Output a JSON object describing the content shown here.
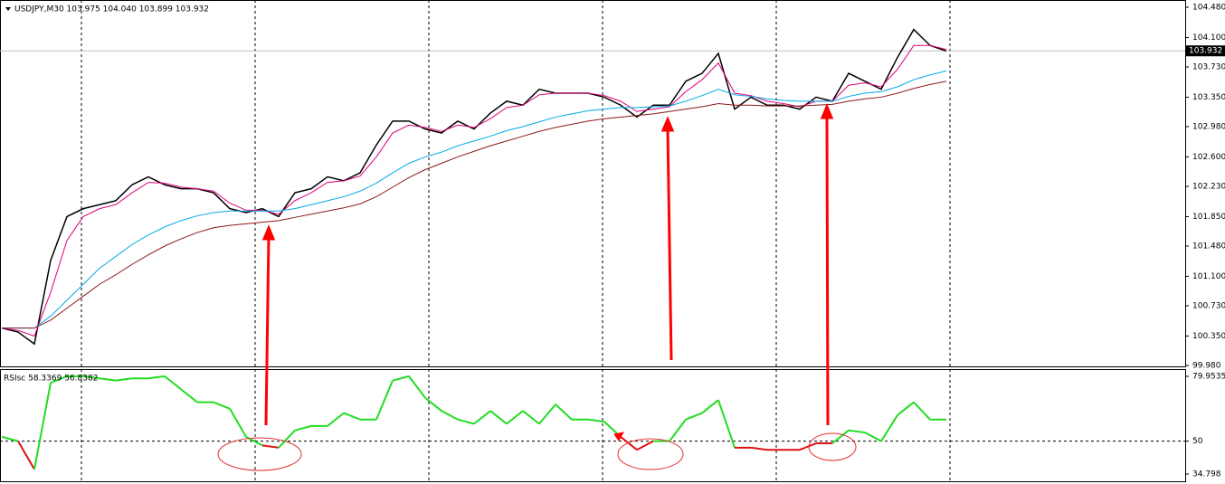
{
  "chart_data": [
    {
      "type": "line",
      "title": "USDJPY,M30 103.975 104.040 103.899 103.932",
      "ylim": [
        99.98,
        104.48
      ],
      "yticks": [
        {
          "value": 104.48,
          "label": "104.480"
        },
        {
          "value": 104.1,
          "label": "104.100"
        },
        {
          "value": 103.73,
          "label": "103.730"
        },
        {
          "value": 103.35,
          "label": "103.350"
        },
        {
          "value": 102.98,
          "label": "102.980"
        },
        {
          "value": 102.6,
          "label": "102.600"
        },
        {
          "value": 102.23,
          "label": "102.230"
        },
        {
          "value": 101.85,
          "label": "101.850"
        },
        {
          "value": 101.48,
          "label": "101.480"
        },
        {
          "value": 101.1,
          "label": "101.100"
        },
        {
          "value": 100.73,
          "label": "100.730"
        },
        {
          "value": 100.35,
          "label": "100.350"
        },
        {
          "value": 99.98,
          "label": "99.980"
        }
      ],
      "current_price": {
        "value": 103.932,
        "label": "103.932"
      },
      "series": [
        {
          "color": "#000000",
          "values": [
            100.45,
            100.4,
            100.25,
            101.3,
            101.85,
            101.95,
            102.0,
            102.05,
            102.25,
            102.35,
            102.25,
            102.2,
            102.2,
            102.15,
            101.95,
            101.9,
            101.95,
            101.85,
            102.15,
            102.2,
            102.35,
            102.3,
            102.4,
            102.75,
            103.05,
            103.05,
            102.95,
            102.9,
            103.05,
            102.95,
            103.15,
            103.3,
            103.25,
            103.45,
            103.4,
            103.4,
            103.4,
            103.35,
            103.25,
            103.1,
            103.25,
            103.25,
            103.55,
            103.65,
            103.9,
            103.2,
            103.35,
            103.25,
            103.25,
            103.2,
            103.35,
            103.3,
            103.65,
            103.55,
            103.45,
            103.85,
            104.2,
            104.0,
            103.93
          ]
        },
        {
          "color": "#e0007a",
          "values": [
            100.45,
            100.42,
            100.35,
            100.9,
            101.55,
            101.85,
            101.95,
            102.0,
            102.15,
            102.28,
            102.27,
            102.22,
            102.2,
            102.17,
            102.02,
            101.93,
            101.93,
            101.88,
            102.05,
            102.15,
            102.28,
            102.3,
            102.36,
            102.6,
            102.9,
            103.0,
            102.97,
            102.92,
            103.0,
            102.97,
            103.08,
            103.22,
            103.25,
            103.38,
            103.4,
            103.4,
            103.4,
            103.37,
            103.3,
            103.17,
            103.2,
            103.23,
            103.42,
            103.57,
            103.78,
            103.4,
            103.37,
            103.3,
            103.27,
            103.23,
            103.3,
            103.3,
            103.5,
            103.53,
            103.48,
            103.7,
            104.0,
            104.0,
            103.95
          ]
        },
        {
          "color": "#00a8e8",
          "values": [
            100.45,
            100.45,
            100.45,
            100.6,
            100.8,
            101.0,
            101.2,
            101.35,
            101.5,
            101.62,
            101.72,
            101.8,
            101.86,
            101.9,
            101.92,
            101.92,
            101.92,
            101.92,
            101.95,
            102.0,
            102.05,
            102.1,
            102.17,
            102.27,
            102.4,
            102.52,
            102.6,
            102.66,
            102.74,
            102.8,
            102.86,
            102.93,
            102.98,
            103.04,
            103.1,
            103.14,
            103.18,
            103.2,
            103.22,
            103.22,
            103.23,
            103.24,
            103.3,
            103.37,
            103.45,
            103.38,
            103.36,
            103.33,
            103.31,
            103.3,
            103.3,
            103.3,
            103.36,
            103.4,
            103.42,
            103.48,
            103.57,
            103.63,
            103.68
          ]
        },
        {
          "color": "#8b1a1a",
          "values": [
            100.45,
            100.45,
            100.45,
            100.55,
            100.7,
            100.85,
            101.0,
            101.12,
            101.25,
            101.37,
            101.48,
            101.57,
            101.65,
            101.71,
            101.74,
            101.76,
            101.78,
            101.8,
            101.84,
            101.88,
            101.92,
            101.96,
            102.01,
            102.1,
            102.22,
            102.34,
            102.44,
            102.52,
            102.6,
            102.67,
            102.74,
            102.8,
            102.86,
            102.92,
            102.97,
            103.01,
            103.05,
            103.08,
            103.1,
            103.12,
            103.14,
            103.17,
            103.2,
            103.23,
            103.27,
            103.25,
            103.25,
            103.24,
            103.24,
            103.24,
            103.25,
            103.26,
            103.3,
            103.33,
            103.35,
            103.4,
            103.46,
            103.51,
            103.55
          ]
        }
      ]
    },
    {
      "type": "line",
      "title": "RSIsc 58.3369 56.8382",
      "ylim": [
        34.798,
        79.9535
      ],
      "yticks": [
        79.9535,
        50,
        34.798
      ],
      "level": 50,
      "color_above": "#22dd22",
      "color_below": "#dd1111",
      "series": [
        {
          "values": [
            52,
            50,
            37,
            77,
            80,
            80,
            79,
            78,
            79,
            79,
            80,
            74,
            68,
            68,
            65,
            52,
            48,
            47,
            55,
            57,
            57,
            63,
            60,
            60,
            78,
            80,
            70,
            64,
            60,
            58,
            64,
            58,
            64,
            58,
            67,
            60,
            60,
            59,
            52,
            46,
            50,
            50,
            60,
            63,
            69,
            47,
            47,
            46,
            46,
            46,
            49,
            49,
            55,
            54,
            50,
            62,
            68,
            60,
            60
          ]
        }
      ]
    }
  ]
}
